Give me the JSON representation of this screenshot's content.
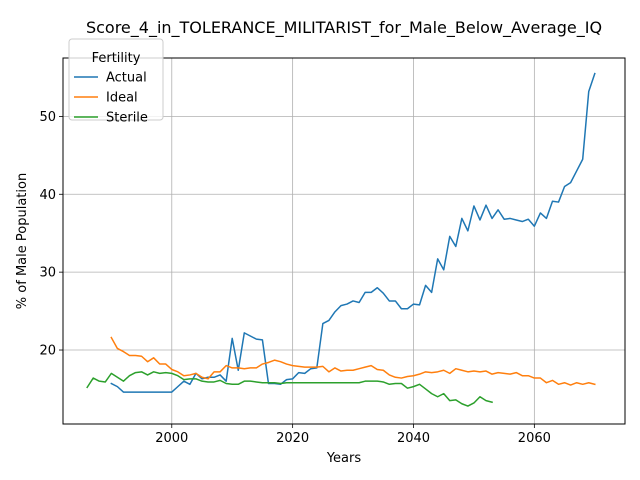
{
  "chart_data": {
    "type": "line",
    "title": "Score_4_in_TOLERANCE_MILITARIST_for_Male_Below_Average_IQ",
    "xlabel": "Years",
    "ylabel": "% of Male Population",
    "xlim": [
      1982,
      2075
    ],
    "ylim": [
      10.5,
      57.5
    ],
    "xticks": [
      2000,
      2020,
      2040,
      2060
    ],
    "yticks": [
      20,
      30,
      40,
      50
    ],
    "grid": true,
    "legend": {
      "title": "Fertility",
      "placement": "top-left"
    },
    "series": [
      {
        "name": "Actual",
        "color": "#1f77b4",
        "x": [
          1990,
          1991,
          1992,
          1993,
          1994,
          1995,
          1996,
          1997,
          1998,
          1999,
          2000,
          2001,
          2002,
          2003,
          2004,
          2005,
          2006,
          2007,
          2008,
          2009,
          2010,
          2011,
          2012,
          2013,
          2014,
          2015,
          2016,
          2017,
          2018,
          2019,
          2020,
          2021,
          2022,
          2023,
          2024,
          2025,
          2026,
          2027,
          2028,
          2029,
          2030,
          2031,
          2032,
          2033,
          2034,
          2035,
          2036,
          2037,
          2038,
          2039,
          2040,
          2041,
          2042,
          2043,
          2044,
          2045,
          2046,
          2047,
          2048,
          2049,
          2050,
          2051,
          2052,
          2053,
          2054,
          2055,
          2056,
          2057,
          2058,
          2059,
          2060,
          2061,
          2062,
          2063,
          2064,
          2065,
          2066,
          2067,
          2068,
          2069,
          2070
        ],
        "y": [
          15.7,
          15.3,
          14.6,
          14.6,
          14.6,
          14.6,
          14.6,
          14.6,
          14.6,
          14.6,
          14.6,
          15.3,
          16.0,
          15.6,
          17.0,
          16.3,
          16.5,
          16.5,
          16.8,
          16.0,
          21.5,
          17.4,
          22.2,
          21.8,
          21.4,
          21.3,
          15.7,
          15.7,
          15.6,
          16.2,
          16.3,
          17.1,
          17.0,
          17.6,
          17.7,
          23.4,
          23.8,
          24.9,
          25.7,
          25.9,
          26.3,
          26.1,
          27.4,
          27.4,
          28.0,
          27.3,
          26.3,
          26.3,
          25.3,
          25.3,
          25.9,
          25.8,
          28.3,
          27.4,
          31.7,
          30.3,
          34.6,
          33.3,
          36.9,
          35.3,
          38.5,
          36.7,
          38.6,
          36.9,
          38.0,
          36.8,
          36.9,
          36.7,
          36.5,
          36.8,
          35.9,
          37.6,
          36.9,
          39.1,
          39.0,
          41.0,
          41.5,
          43.0,
          44.5,
          53.2,
          55.5
        ]
      },
      {
        "name": "Ideal",
        "color": "#ff7f0e",
        "x": [
          1990,
          1991,
          1992,
          1993,
          1994,
          1995,
          1996,
          1997,
          1998,
          1999,
          2000,
          2001,
          2002,
          2003,
          2004,
          2005,
          2006,
          2007,
          2008,
          2009,
          2010,
          2011,
          2012,
          2013,
          2014,
          2015,
          2016,
          2017,
          2018,
          2019,
          2020,
          2021,
          2022,
          2023,
          2024,
          2025,
          2026,
          2027,
          2028,
          2029,
          2030,
          2031,
          2032,
          2033,
          2034,
          2035,
          2036,
          2037,
          2038,
          2039,
          2040,
          2041,
          2042,
          2043,
          2044,
          2045,
          2046,
          2047,
          2048,
          2049,
          2050,
          2051,
          2052,
          2053,
          2054,
          2055,
          2056,
          2057,
          2058,
          2059,
          2060,
          2061,
          2062,
          2063,
          2064,
          2065,
          2066,
          2067,
          2068,
          2069,
          2070
        ],
        "y": [
          21.6,
          20.2,
          19.8,
          19.3,
          19.3,
          19.2,
          18.5,
          19.0,
          18.2,
          18.2,
          17.5,
          17.2,
          16.7,
          16.8,
          17.0,
          16.5,
          16.3,
          17.2,
          17.2,
          18.0,
          17.7,
          17.7,
          17.6,
          17.7,
          17.7,
          18.2,
          18.4,
          18.7,
          18.5,
          18.2,
          18.0,
          17.9,
          17.8,
          17.8,
          17.8,
          17.9,
          17.2,
          17.7,
          17.3,
          17.4,
          17.4,
          17.6,
          17.8,
          18.0,
          17.5,
          17.4,
          16.8,
          16.5,
          16.4,
          16.6,
          16.7,
          16.9,
          17.2,
          17.1,
          17.2,
          17.4,
          17.0,
          17.6,
          17.4,
          17.2,
          17.3,
          17.2,
          17.3,
          16.9,
          17.1,
          17.0,
          16.9,
          17.1,
          16.7,
          16.7,
          16.4,
          16.4,
          15.8,
          16.1,
          15.6,
          15.8,
          15.5,
          15.8,
          15.6,
          15.8,
          15.6
        ]
      },
      {
        "name": "Sterile",
        "color": "#2ca02c",
        "x": [
          1986,
          1987,
          1988,
          1989,
          1990,
          1991,
          1992,
          1993,
          1994,
          1995,
          1996,
          1997,
          1998,
          1999,
          2000,
          2001,
          2002,
          2003,
          2004,
          2005,
          2006,
          2007,
          2008,
          2009,
          2010,
          2011,
          2012,
          2013,
          2014,
          2015,
          2016,
          2017,
          2018,
          2019,
          2020,
          2021,
          2022,
          2023,
          2024,
          2025,
          2026,
          2027,
          2028,
          2029,
          2030,
          2031,
          2032,
          2033,
          2034,
          2035,
          2036,
          2037,
          2038,
          2039,
          2040,
          2041,
          2042,
          2043,
          2044,
          2045,
          2046,
          2047,
          2048,
          2049,
          2050,
          2051,
          2052,
          2053
        ],
        "y": [
          15.2,
          16.4,
          16.0,
          15.9,
          17.0,
          16.5,
          16.0,
          16.7,
          17.1,
          17.2,
          16.8,
          17.2,
          17.0,
          17.1,
          17.0,
          16.7,
          16.2,
          16.3,
          16.3,
          16.0,
          15.9,
          15.9,
          16.1,
          15.7,
          15.6,
          15.6,
          16.0,
          16.0,
          15.9,
          15.8,
          15.8,
          15.8,
          15.7,
          15.8,
          15.8,
          15.8,
          15.8,
          15.8,
          15.8,
          15.8,
          15.8,
          15.8,
          15.8,
          15.8,
          15.8,
          15.8,
          16.0,
          16.0,
          16.0,
          15.9,
          15.6,
          15.7,
          15.7,
          15.1,
          15.3,
          15.6,
          15.0,
          14.4,
          14.0,
          14.4,
          13.5,
          13.6,
          13.1,
          12.8,
          13.2,
          14.0,
          13.5,
          13.3
        ]
      }
    ]
  }
}
